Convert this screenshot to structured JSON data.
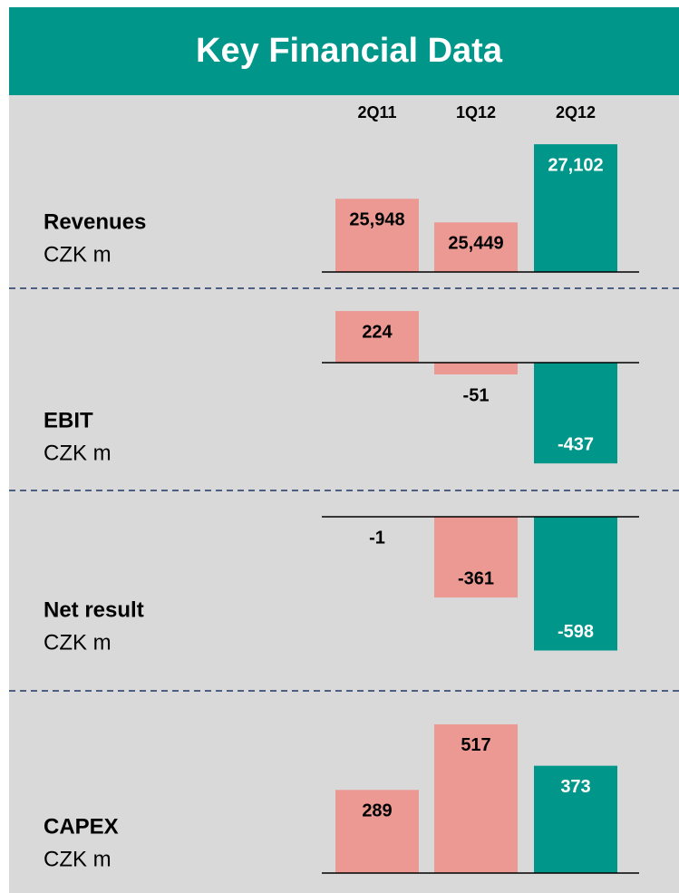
{
  "title": "Key Financial Data",
  "categories": [
    "2Q11",
    "1Q12",
    "2Q12"
  ],
  "chart_data": [
    {
      "type": "bar",
      "title": "Revenues",
      "subtitle": "CZK m",
      "values": [
        25948,
        25449,
        27102
      ],
      "value_labels": [
        "25,948",
        "25,449",
        "27,102"
      ],
      "colors": [
        "#ec9993",
        "#ec9993",
        "#00968a"
      ],
      "ylim": [
        24400,
        27200
      ]
    },
    {
      "type": "bar",
      "title": "EBIT",
      "subtitle": "CZK m",
      "values": [
        224,
        -51,
        -437
      ],
      "colors": [
        "#ec9993",
        "#ec9993",
        "#00968a"
      ],
      "ylim": [
        -460,
        240
      ]
    },
    {
      "type": "bar",
      "title": "Net result",
      "subtitle": "CZK m",
      "values": [
        -1,
        -361,
        -598
      ],
      "colors": [
        "#ec9993",
        "#ec9993",
        "#00968a"
      ],
      "ylim": [
        -600,
        0
      ]
    },
    {
      "type": "bar",
      "title": "CAPEX",
      "subtitle": "CZK m",
      "values": [
        289,
        517,
        373
      ],
      "colors": [
        "#ec9993",
        "#ec9993",
        "#00968a"
      ],
      "ylim": [
        0,
        520
      ]
    }
  ]
}
